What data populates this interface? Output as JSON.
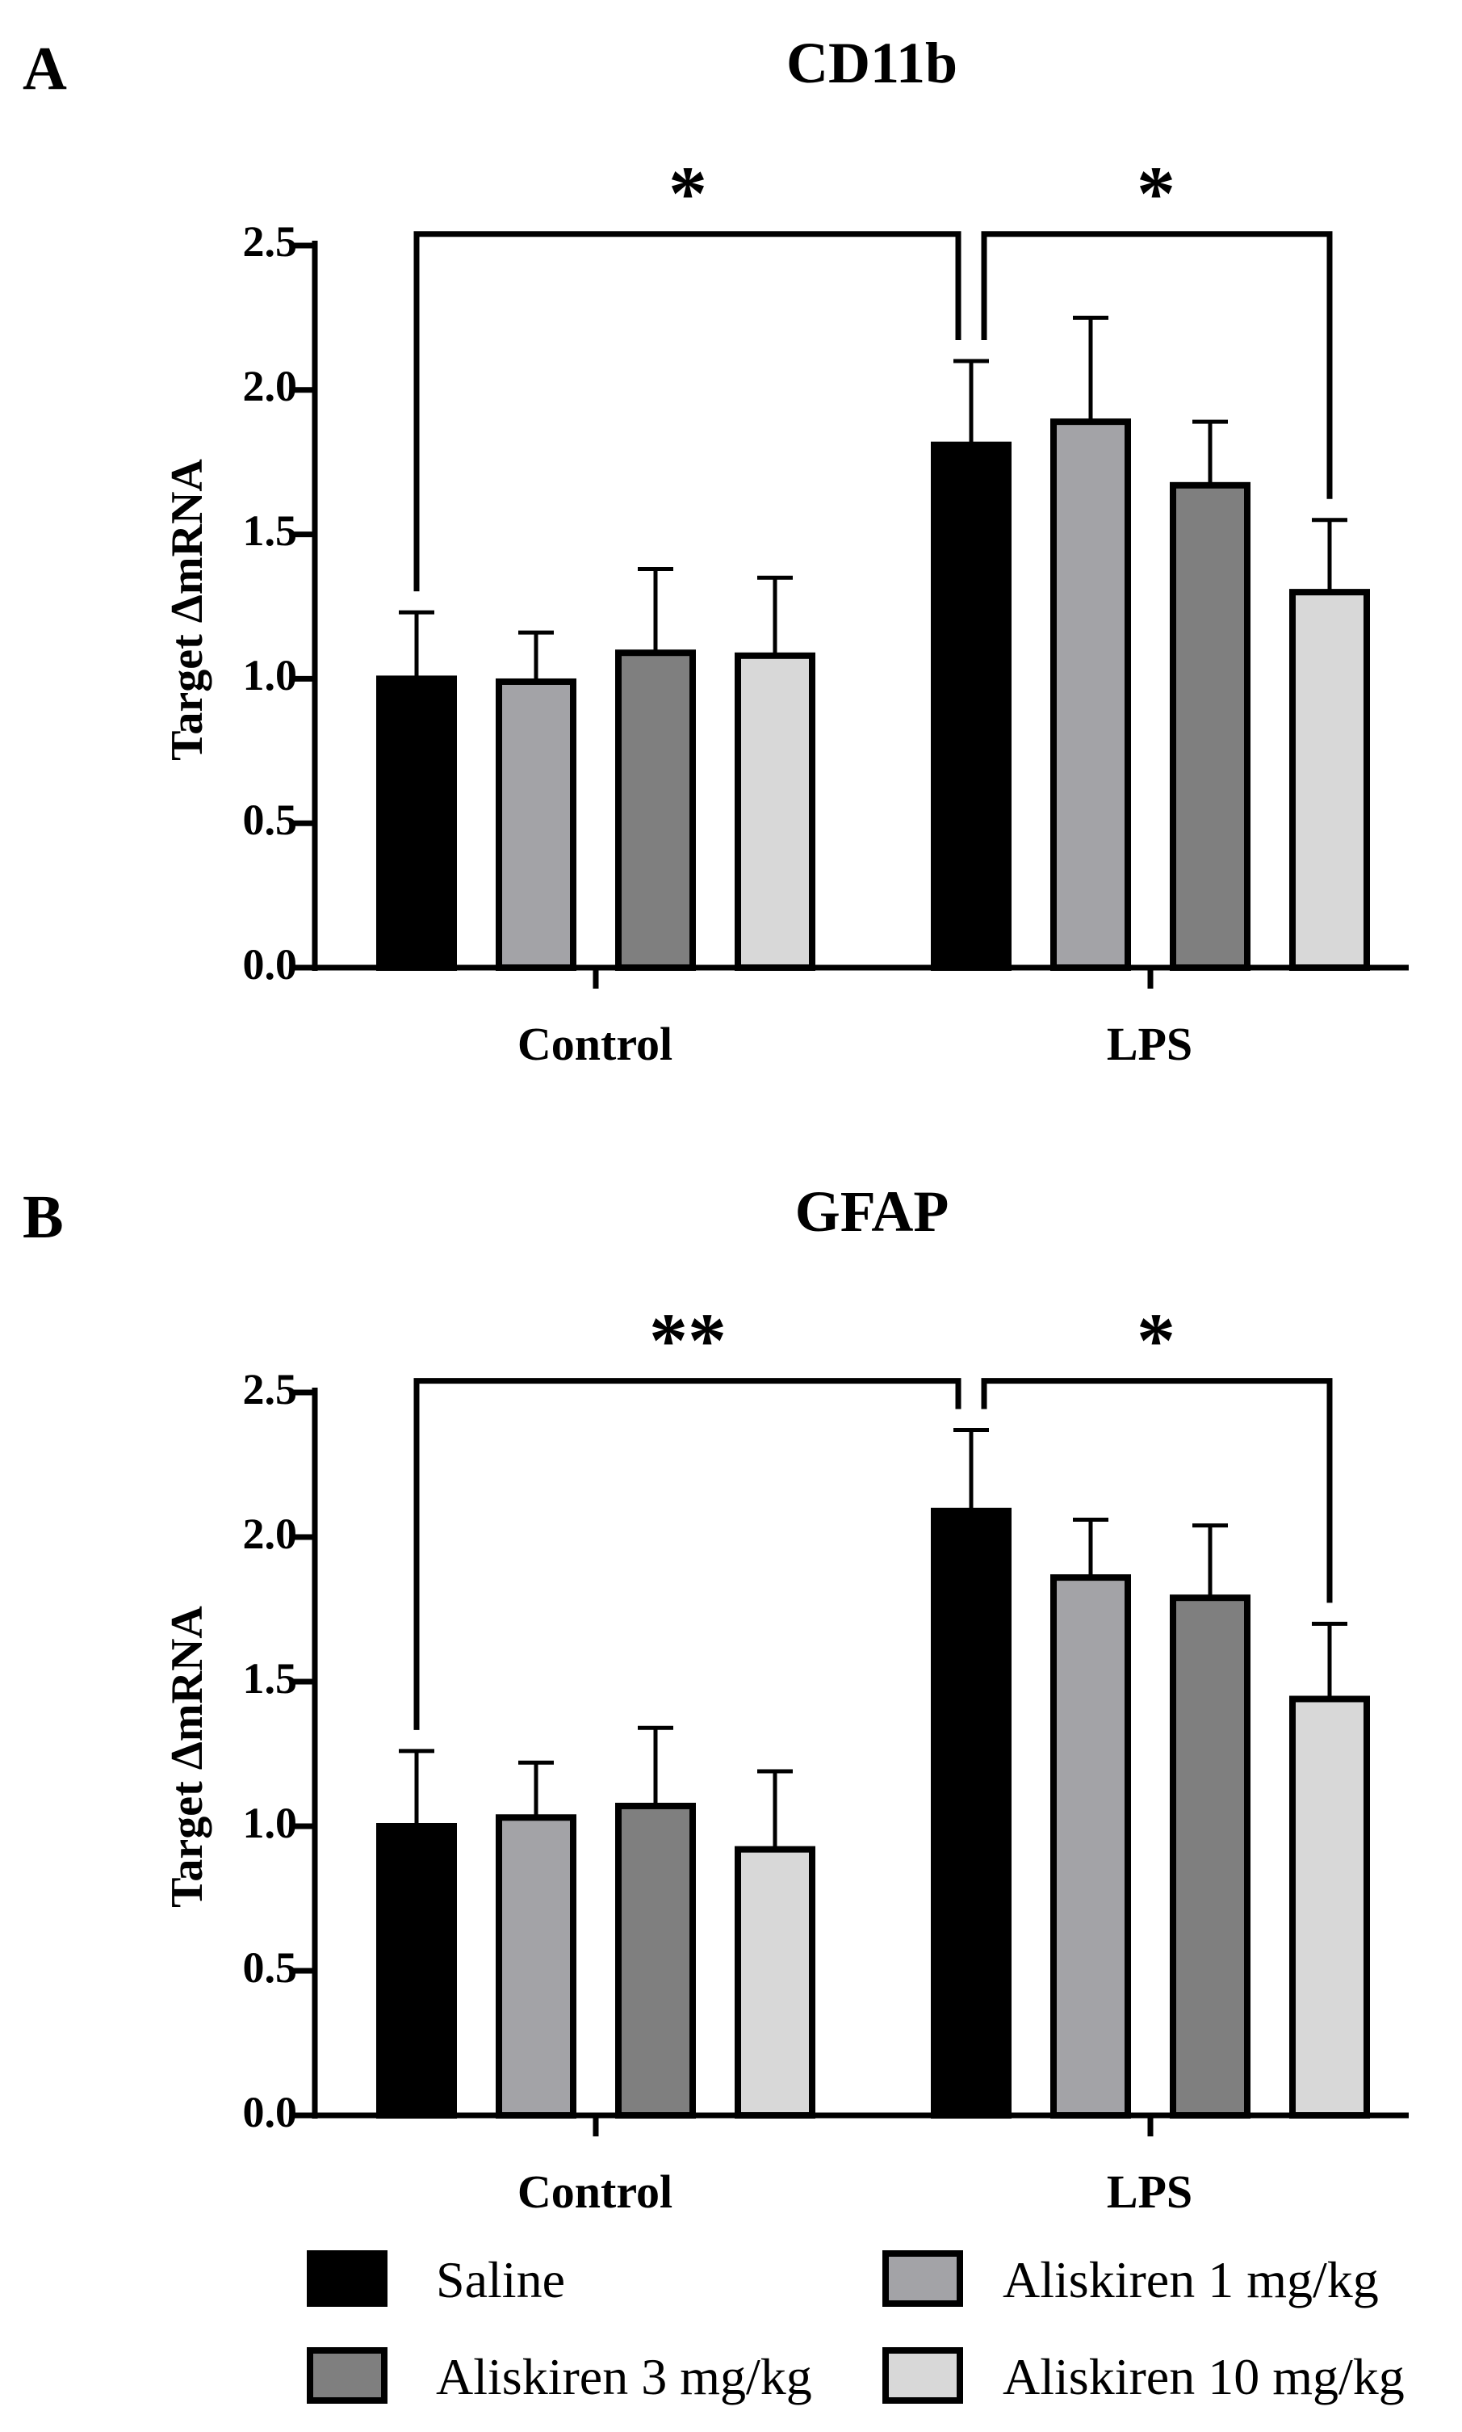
{
  "chart_data": [
    {
      "type": "bar",
      "panel": "A",
      "title": "CD11b",
      "xlabel": "",
      "ylabel": "Target ΔmRNA",
      "ylim": [
        0,
        2.5
      ],
      "yticks": [
        "0.0",
        "0.5",
        "1.0",
        "1.5",
        "2.0",
        "2.5"
      ],
      "categories": [
        "Control",
        "LPS"
      ],
      "series": [
        {
          "name": "Saline",
          "color": "#000000",
          "values": [
            1.0,
            1.81
          ],
          "errors": [
            0.23,
            0.29
          ]
        },
        {
          "name": "Aliskiren 1 mg/kg",
          "color": "#a3a3a7",
          "values": [
            0.99,
            1.89
          ],
          "errors": [
            0.17,
            0.36
          ]
        },
        {
          "name": "Aliskiren 3 mg/kg",
          "color": "#7f7f7f",
          "values": [
            1.09,
            1.67
          ],
          "errors": [
            0.29,
            0.22
          ]
        },
        {
          "name": "Aliskiren 10 mg/kg",
          "color": "#d8d8d8",
          "values": [
            1.08,
            1.3
          ],
          "errors": [
            0.27,
            0.25
          ]
        }
      ],
      "significance": [
        {
          "label": "*",
          "from": "Control · Saline",
          "to": "LPS · Saline"
        },
        {
          "label": "*",
          "from": "LPS · Saline",
          "to": "LPS · Aliskiren 10 mg/kg"
        }
      ]
    },
    {
      "type": "bar",
      "panel": "B",
      "title": "GFAP",
      "xlabel": "",
      "ylabel": "Target ΔmRNA",
      "ylim": [
        0,
        2.5
      ],
      "yticks": [
        "0.0",
        "0.5",
        "1.0",
        "1.5",
        "2.0",
        "2.5"
      ],
      "categories": [
        "Control",
        "LPS"
      ],
      "series": [
        {
          "name": "Saline",
          "color": "#000000",
          "values": [
            1.0,
            2.09
          ],
          "errors": [
            0.26,
            0.28
          ]
        },
        {
          "name": "Aliskiren 1 mg/kg",
          "color": "#a3a3a7",
          "values": [
            1.03,
            1.86
          ],
          "errors": [
            0.19,
            0.2
          ]
        },
        {
          "name": "Aliskiren 3 mg/kg",
          "color": "#7f7f7f",
          "values": [
            1.07,
            1.79
          ],
          "errors": [
            0.27,
            0.25
          ]
        },
        {
          "name": "Aliskiren 10 mg/kg",
          "color": "#d8d8d8",
          "values": [
            0.92,
            1.44
          ],
          "errors": [
            0.27,
            0.26
          ]
        }
      ],
      "significance": [
        {
          "label": "**",
          "from": "Control · Saline",
          "to": "LPS · Saline"
        },
        {
          "label": "*",
          "from": "LPS · Saline",
          "to": "LPS · Aliskiren 10 mg/kg"
        }
      ]
    }
  ],
  "legend": {
    "position": "bottom",
    "items": [
      {
        "label": "Saline",
        "color": "#000000"
      },
      {
        "label": "Aliskiren 1 mg/kg",
        "color": "#a3a3a7"
      },
      {
        "label": "Aliskiren 3 mg/kg",
        "color": "#7f7f7f"
      },
      {
        "label": "Aliskiren 10 mg/kg",
        "color": "#d8d8d8"
      }
    ]
  }
}
